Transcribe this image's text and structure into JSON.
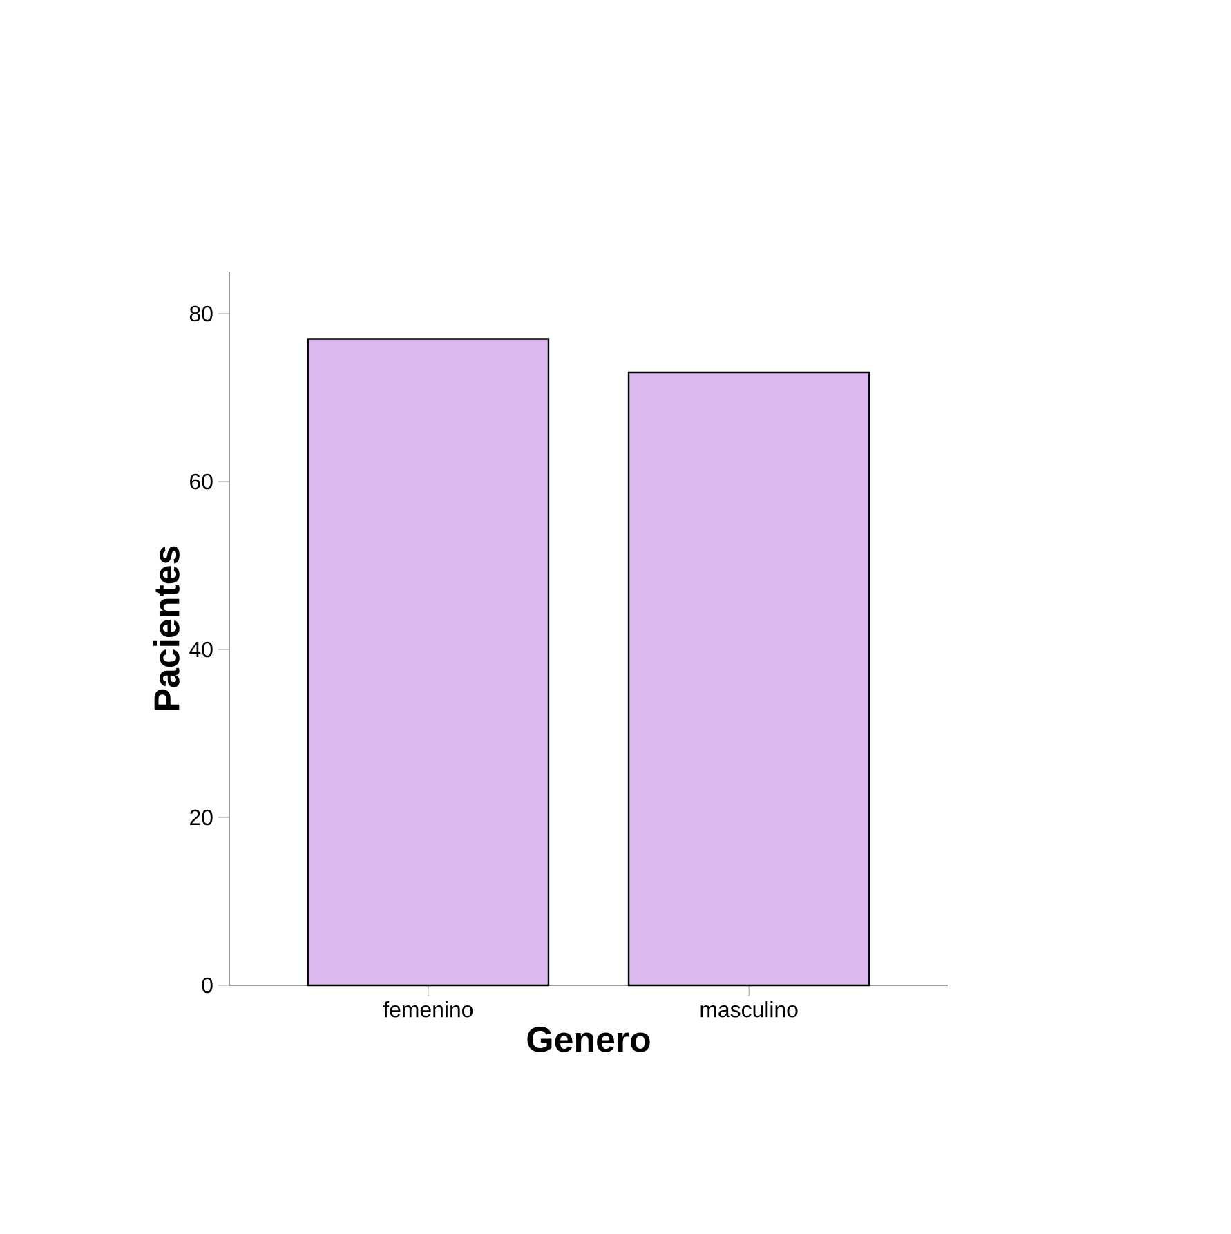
{
  "chart_data": {
    "type": "bar",
    "categories": [
      "femenino",
      "masculino"
    ],
    "values": [
      77,
      73
    ],
    "color": "#dcb8f0",
    "xlabel": "Genero",
    "ylabel": "Pacientes",
    "ylim": [
      0,
      85
    ],
    "yticks": [
      0,
      20,
      40,
      60,
      80
    ]
  }
}
